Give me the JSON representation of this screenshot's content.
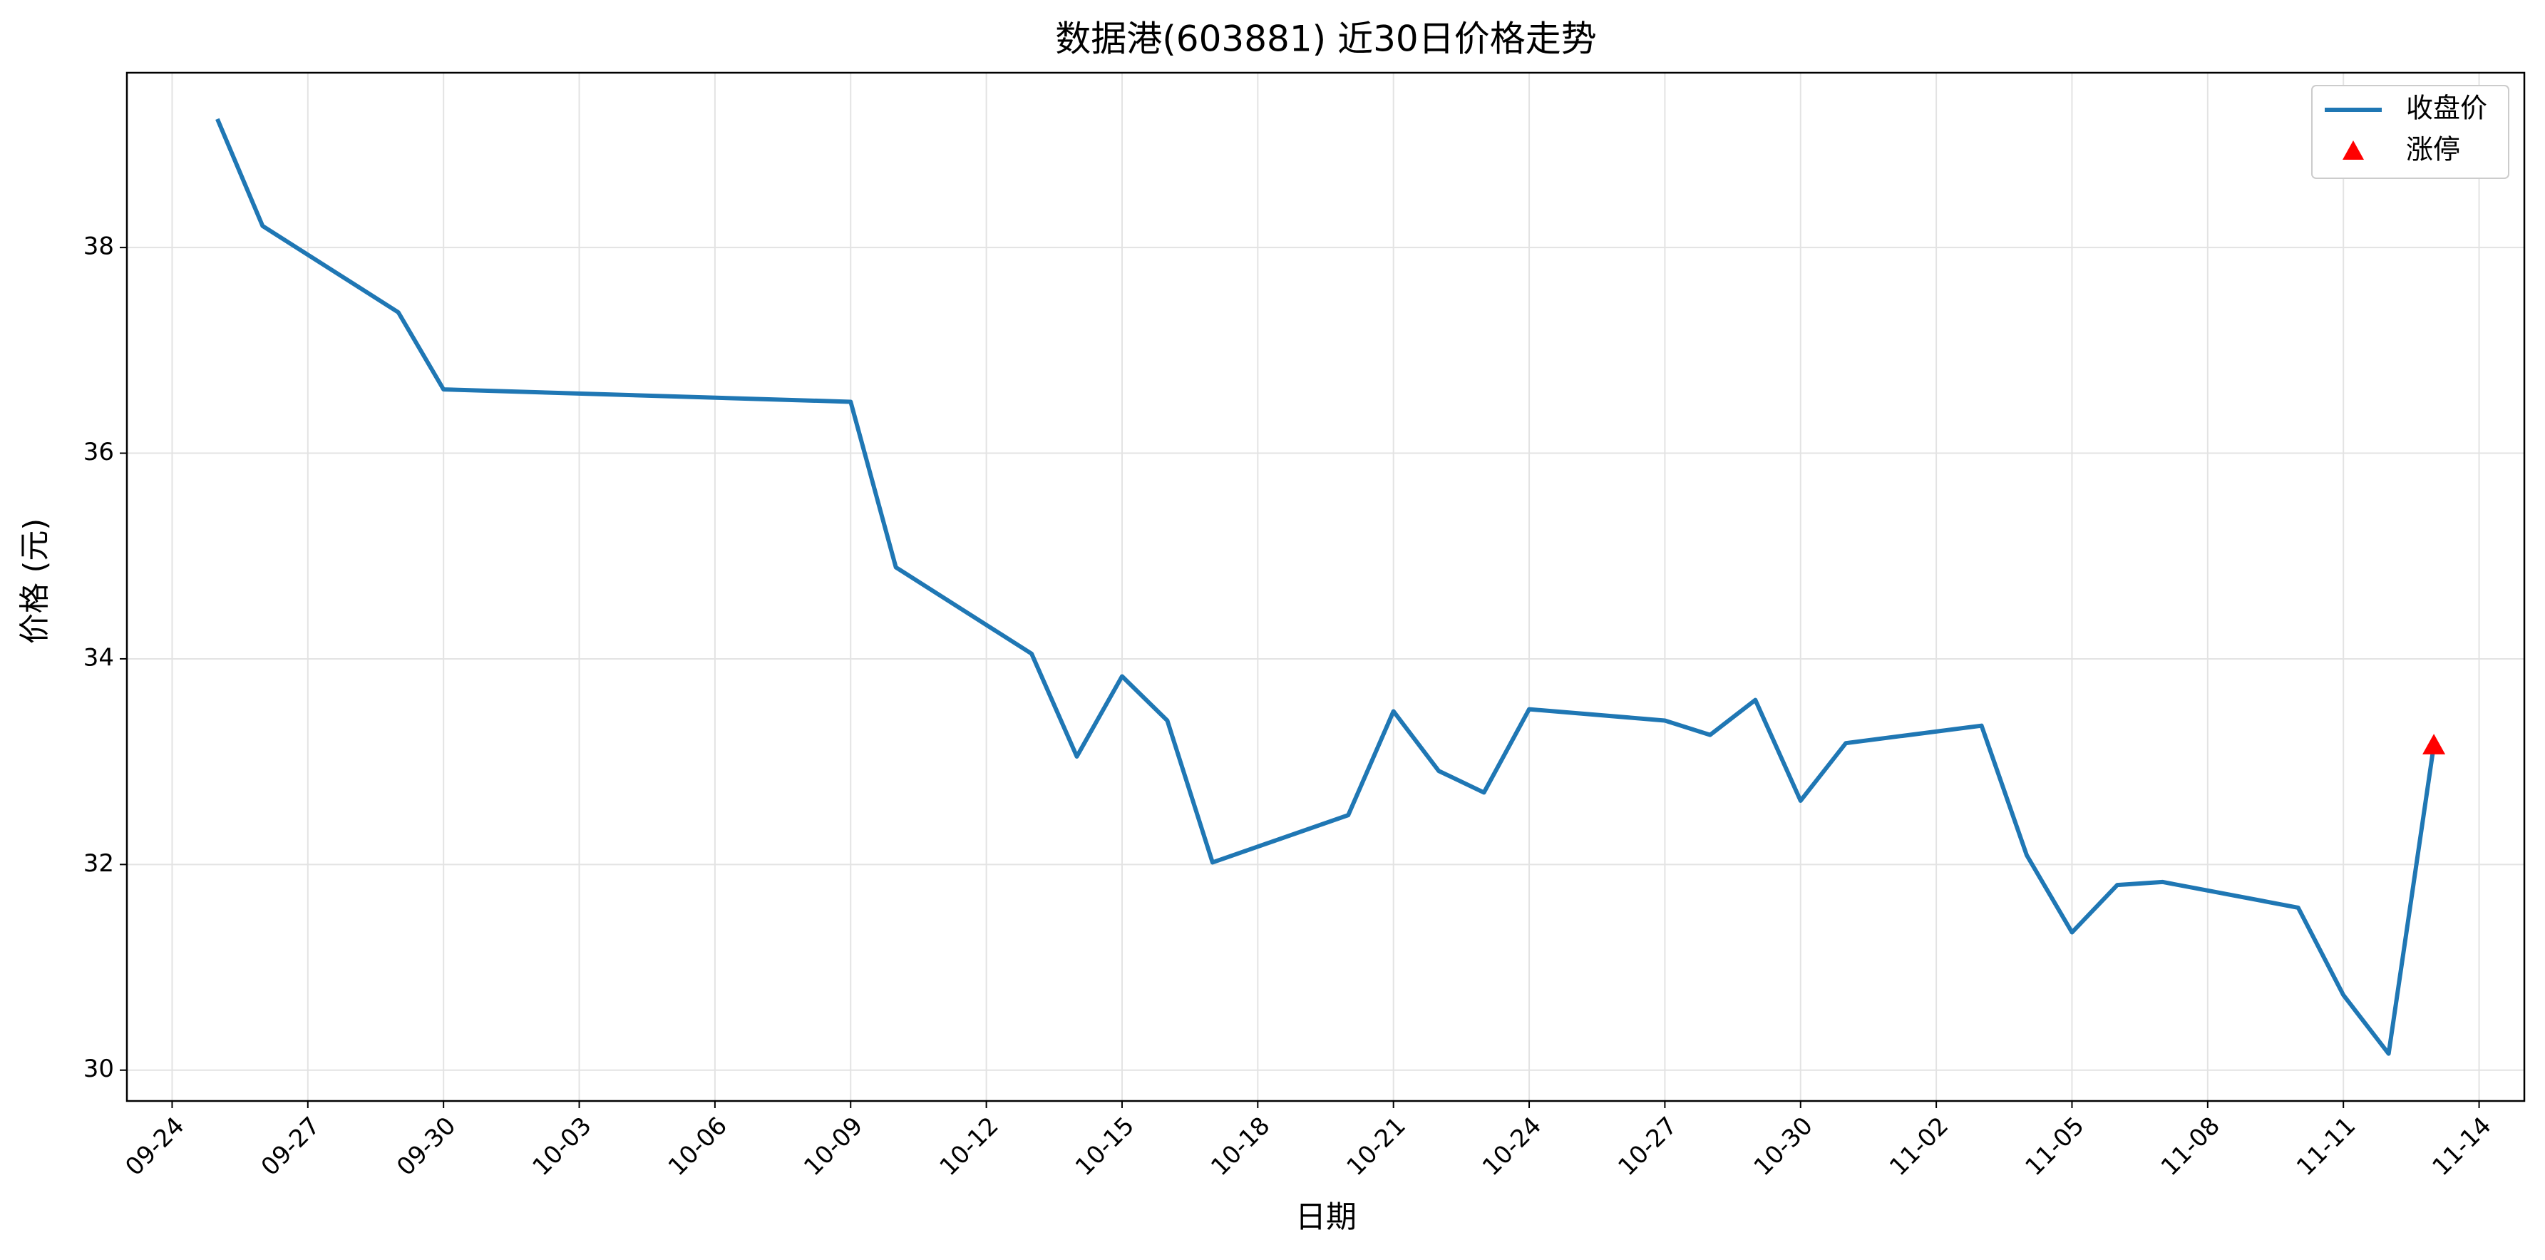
{
  "chart_data": {
    "type": "line",
    "title": "数据港(603881) 近30日价格走势",
    "x_label": "日期",
    "y_label": "价格 (元)",
    "x": [
      "09-25",
      "09-26",
      "09-29",
      "09-30",
      "10-09",
      "10-10",
      "10-13",
      "10-14",
      "10-15",
      "10-16",
      "10-17",
      "10-20",
      "10-21",
      "10-22",
      "10-23",
      "10-24",
      "10-27",
      "10-28",
      "10-29",
      "10-30",
      "10-31",
      "11-03",
      "11-04",
      "11-05",
      "11-06",
      "11-07",
      "11-10",
      "11-11",
      "11-12",
      "11-13"
    ],
    "series": [
      {
        "name": "收盘价",
        "color": "#1f77b4",
        "values": [
          39.25,
          38.21,
          37.37,
          36.62,
          36.5,
          34.89,
          34.05,
          33.05,
          33.83,
          33.4,
          32.02,
          32.48,
          33.49,
          32.91,
          32.7,
          33.51,
          33.4,
          33.26,
          33.6,
          32.62,
          33.18,
          33.35,
          32.09,
          31.34,
          31.8,
          31.83,
          31.58,
          30.73,
          30.16,
          33.16
        ]
      },
      {
        "name": "涨停",
        "color": "#ff0000",
        "marker": "triangle",
        "x": [
          "11-13"
        ],
        "values": [
          33.16
        ]
      }
    ],
    "xlim": [
      "09-23",
      "11-15"
    ],
    "xticks": [
      "09-24",
      "09-27",
      "09-30",
      "10-03",
      "10-06",
      "10-09",
      "10-12",
      "10-15",
      "10-18",
      "10-21",
      "10-24",
      "10-27",
      "10-30",
      "11-02",
      "11-05",
      "11-08",
      "11-11",
      "11-14"
    ],
    "ylim": [
      29.7,
      39.7
    ],
    "yticks": [
      30,
      32,
      34,
      36,
      38
    ],
    "grid": true,
    "legend": "upper right"
  }
}
